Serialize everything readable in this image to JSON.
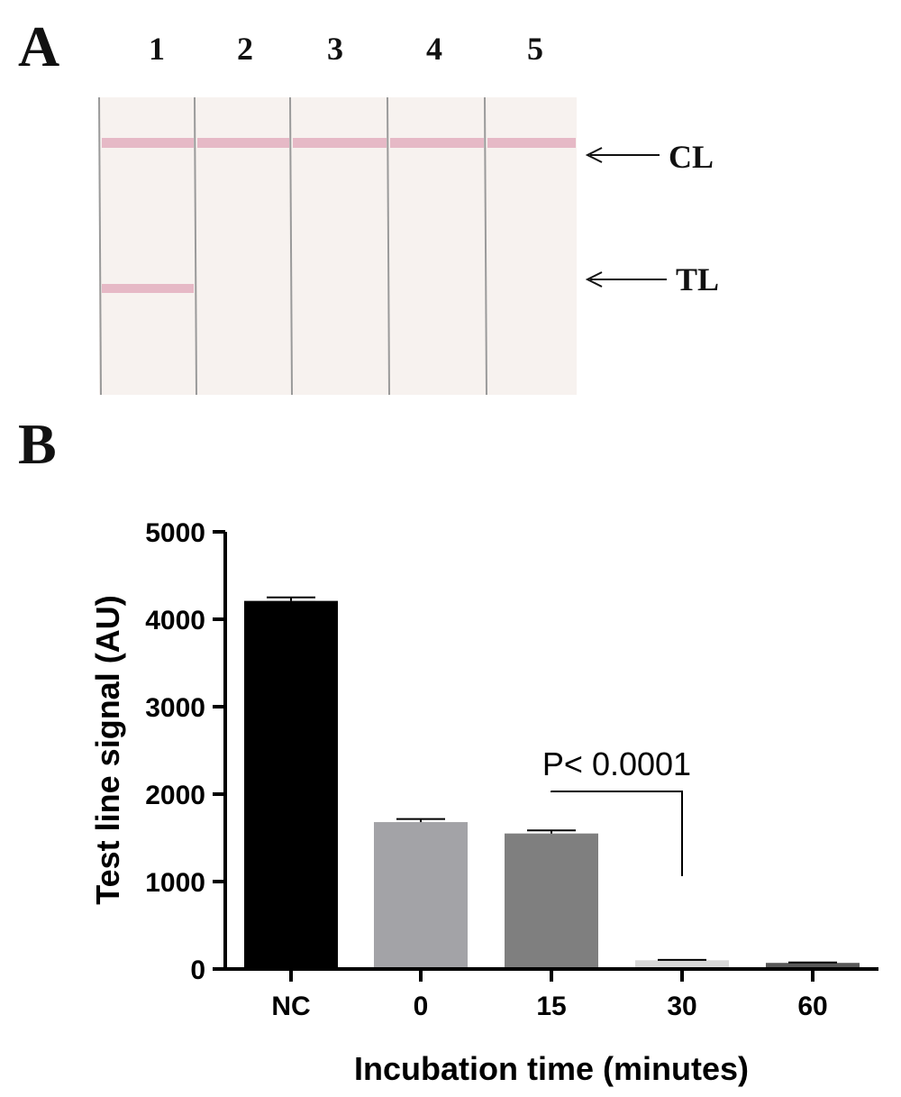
{
  "panel_a": {
    "letter": "A",
    "lanes": [
      "1",
      "2",
      "3",
      "4",
      "5"
    ],
    "control_line_label": "CL",
    "test_line_label": "TL",
    "control_line_present": [
      true,
      true,
      true,
      true,
      true
    ],
    "test_line_present": [
      true,
      false,
      false,
      false,
      false
    ],
    "colors": {
      "strip": "#f7f2ef",
      "line": "#e6b9c6",
      "separator": "#9a9a9a"
    }
  },
  "panel_b": {
    "letter": "B",
    "annotation": "P< 0.0001"
  },
  "chart_data": {
    "type": "bar",
    "categories": [
      "NC",
      "0",
      "15",
      "30",
      "60"
    ],
    "values": [
      4210,
      1680,
      1550,
      100,
      70
    ],
    "errors": [
      40,
      35,
      35,
      5,
      5
    ],
    "colors": [
      "#000000",
      "#a3a3a7",
      "#7f7f7f",
      "#d8d8d8",
      "#595959"
    ],
    "title": "",
    "xlabel": "Incubation time (minutes)",
    "ylabel": "Test line signal (AU)",
    "ylim": [
      0,
      5000
    ],
    "yticks": [
      0,
      1000,
      2000,
      3000,
      4000,
      5000
    ],
    "grid": false,
    "comparison": {
      "from": "15",
      "to": "30",
      "label": "P< 0.0001"
    }
  }
}
